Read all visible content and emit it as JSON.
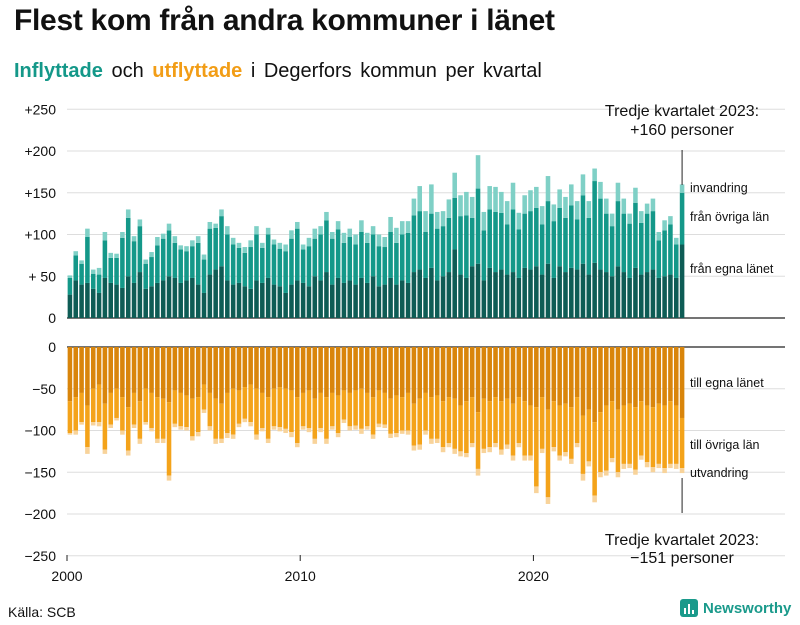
{
  "title": "Flest kom från andra kommuner i länet",
  "subtitle": {
    "in_word": "Inflyttade",
    "and_word": "och",
    "out_word": "utflyttade",
    "rest": "i Degerfors kommun per kvartal"
  },
  "source": "Källa: SCB",
  "brand": "Newsworthy",
  "colors": {
    "in_lan": "#0e5c55",
    "in_ovriga": "#149889",
    "in_invandring": "#7fd0c6",
    "out_lan": "#d9850b",
    "out_ovriga": "#f4a31a",
    "out_utvandring": "#f8d39a",
    "grid": "#dddddd",
    "axis": "#222222"
  },
  "chart_data": {
    "type": "bar",
    "stacked": true,
    "x_start_year": 2000,
    "x_ticks": [
      "2000",
      "2010",
      "2020"
    ],
    "x_tick_years": [
      2000,
      2010,
      2020
    ],
    "ylim": [
      -250,
      250
    ],
    "y_ticks_top": [
      {
        "value": 250,
        "label": "+250"
      },
      {
        "value": 200,
        "label": "+200"
      },
      {
        "value": 150,
        "label": "+150"
      },
      {
        "value": 100,
        "label": "+100"
      },
      {
        "value": 50,
        "label": "+ 50"
      },
      {
        "value": 0,
        "label": "0"
      }
    ],
    "y_ticks_bottom": [
      {
        "value": 0,
        "label": "0"
      },
      {
        "value": -50,
        "label": "−50"
      },
      {
        "value": -100,
        "label": "−100"
      },
      {
        "value": -150,
        "label": "−150"
      },
      {
        "value": -200,
        "label": "−200"
      },
      {
        "value": -250,
        "label": "−250"
      }
    ],
    "series_in": [
      {
        "name": "från egna länet",
        "key": "lan"
      },
      {
        "name": "från övriga län",
        "key": "ovriga"
      },
      {
        "name": "invandring",
        "key": "invandring"
      }
    ],
    "series_out": [
      {
        "name": "till egna länet",
        "key": "lan"
      },
      {
        "name": "till övriga län",
        "key": "ovriga"
      },
      {
        "name": "utvandring",
        "key": "utvandring"
      }
    ],
    "inflyttade": {
      "lan": [
        28,
        45,
        40,
        42,
        35,
        30,
        48,
        42,
        40,
        36,
        50,
        42,
        55,
        35,
        38,
        42,
        45,
        50,
        48,
        42,
        45,
        48,
        40,
        30,
        52,
        58,
        62,
        45,
        40,
        42,
        38,
        35,
        45,
        42,
        48,
        40,
        38,
        30,
        40,
        45,
        42,
        38,
        50,
        45,
        55,
        40,
        48,
        42,
        45,
        40,
        48,
        42,
        50,
        38,
        40,
        48,
        40,
        45,
        42,
        55,
        58,
        48,
        60,
        45,
        50,
        55,
        82,
        52,
        48,
        62,
        65,
        45,
        60,
        55,
        58,
        52,
        55,
        48,
        60,
        58,
        62,
        52,
        65,
        48,
        62,
        55,
        60,
        58,
        65,
        52,
        66,
        58,
        55,
        50,
        62,
        55,
        48,
        60,
        52,
        55,
        58,
        48,
        50,
        52,
        48,
        88
      ],
      "ovriga": [
        20,
        30,
        25,
        55,
        18,
        22,
        45,
        30,
        32,
        60,
        70,
        50,
        55,
        30,
        35,
        45,
        50,
        55,
        42,
        40,
        35,
        38,
        50,
        40,
        55,
        50,
        60,
        55,
        48,
        42,
        40,
        50,
        55,
        42,
        52,
        48,
        45,
        50,
        55,
        62,
        40,
        48,
        45,
        55,
        62,
        55,
        58,
        48,
        52,
        48,
        55,
        48,
        50,
        48,
        45,
        55,
        50,
        55,
        60,
        68,
        70,
        55,
        65,
        62,
        60,
        65,
        62,
        70,
        75,
        58,
        90,
        60,
        70,
        72,
        68,
        60,
        75,
        58,
        65,
        70,
        70,
        60,
        75,
        68,
        70,
        65,
        75,
        60,
        82,
        68,
        98,
        85,
        70,
        60,
        78,
        70,
        65,
        78,
        62,
        70,
        70,
        45,
        55,
        60,
        40,
        62
      ],
      "invandring": [
        3,
        5,
        4,
        10,
        5,
        8,
        10,
        6,
        5,
        7,
        10,
        6,
        8,
        5,
        6,
        10,
        6,
        8,
        8,
        5,
        6,
        7,
        8,
        6,
        8,
        5,
        8,
        10,
        8,
        6,
        7,
        8,
        10,
        6,
        8,
        6,
        7,
        8,
        10,
        8,
        6,
        10,
        12,
        10,
        10,
        8,
        10,
        12,
        10,
        12,
        14,
        12,
        10,
        14,
        12,
        18,
        18,
        16,
        14,
        20,
        30,
        25,
        35,
        20,
        18,
        22,
        30,
        25,
        28,
        25,
        40,
        22,
        28,
        30,
        25,
        28,
        32,
        20,
        22,
        25,
        25,
        22,
        30,
        20,
        22,
        25,
        25,
        22,
        25,
        20,
        15,
        20,
        18,
        15,
        22,
        18,
        12,
        18,
        14,
        12,
        15,
        10,
        12,
        10,
        8,
        10
      ],
      "total_labels": {
        "last_quarter": "Tredje kvartalet 2023:",
        "last_value": "+160 personer"
      }
    },
    "utflyttade": {
      "lan": [
        65,
        60,
        55,
        70,
        50,
        45,
        68,
        55,
        50,
        60,
        72,
        55,
        65,
        50,
        55,
        60,
        62,
        66,
        52,
        55,
        58,
        62,
        60,
        45,
        55,
        62,
        68,
        55,
        50,
        52,
        48,
        45,
        50,
        55,
        60,
        50,
        48,
        50,
        52,
        60,
        55,
        52,
        62,
        55,
        60,
        55,
        58,
        52,
        55,
        52,
        50,
        55,
        60,
        52,
        55,
        62,
        58,
        60,
        55,
        68,
        62,
        55,
        60,
        58,
        65,
        60,
        62,
        70,
        65,
        60,
        78,
        62,
        65,
        60,
        65,
        62,
        68,
        60,
        65,
        70,
        72,
        60,
        75,
        65,
        70,
        68,
        72,
        60,
        82,
        75,
        90,
        78,
        70,
        65,
        75,
        70,
        68,
        72,
        65,
        70,
        72,
        68,
        70,
        65,
        70,
        85
      ],
      "ovriga": [
        38,
        40,
        35,
        50,
        40,
        45,
        55,
        38,
        35,
        40,
        52,
        38,
        45,
        40,
        42,
        50,
        48,
        88,
        40,
        40,
        38,
        45,
        42,
        30,
        40,
        48,
        42,
        48,
        55,
        40,
        38,
        45,
        55,
        42,
        50,
        45,
        48,
        48,
        50,
        55,
        40,
        45,
        48,
        42,
        50,
        40,
        45,
        35,
        40,
        42,
        48,
        40,
        45,
        40,
        38,
        42,
        45,
        40,
        45,
        50,
        55,
        45,
        50,
        52,
        55,
        55,
        60,
        55,
        62,
        55,
        68,
        60,
        55,
        55,
        58,
        55,
        62,
        55,
        65,
        60,
        95,
        62,
        105,
        55,
        60,
        58,
        62,
        55,
        70,
        62,
        88,
        72,
        78,
        68,
        75,
        70,
        72,
        75,
        65,
        68,
        72,
        72,
        75,
        75,
        70,
        60
      ],
      "utvandring": [
        2,
        5,
        3,
        8,
        4,
        5,
        5,
        4,
        3,
        5,
        6,
        4,
        6,
        3,
        4,
        5,
        5,
        6,
        4,
        4,
        4,
        5,
        5,
        4,
        5,
        6,
        5,
        6,
        5,
        4,
        4,
        5,
        6,
        4,
        5,
        4,
        5,
        5,
        6,
        5,
        4,
        5,
        6,
        5,
        6,
        4,
        5,
        4,
        5,
        5,
        6,
        4,
        5,
        4,
        4,
        5,
        5,
        4,
        5,
        6,
        6,
        5,
        6,
        5,
        6,
        5,
        6,
        6,
        5,
        5,
        8,
        5,
        6,
        5,
        6,
        5,
        6,
        5,
        6,
        6,
        8,
        5,
        8,
        5,
        6,
        5,
        6,
        5,
        8,
        6,
        8,
        6,
        6,
        5,
        6,
        6,
        5,
        6,
        5,
        6,
        6,
        5,
        6,
        5,
        6,
        6
      ],
      "total_labels": {
        "last_quarter": "Tredje kvartalet 2023:",
        "last_value": "−151 personer"
      }
    }
  }
}
